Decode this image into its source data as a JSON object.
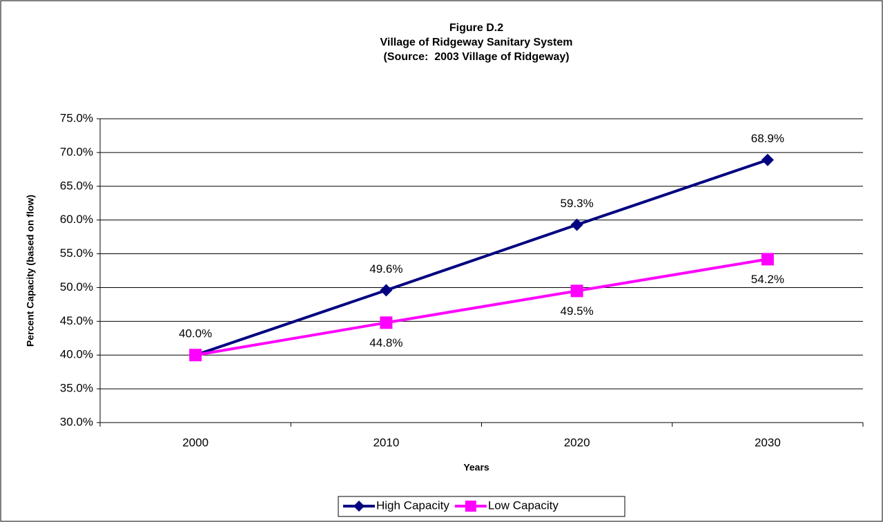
{
  "chart_data": {
    "type": "line",
    "title": "Figure D.2",
    "subtitle": [
      "Village of Ridgeway Sanitary System",
      "(Source:  2003 Village of Ridgeway)"
    ],
    "xlabel": "Years",
    "ylabel": "Percent Capacity (based on flow)",
    "categories": [
      "2000",
      "2010",
      "2020",
      "2030"
    ],
    "series": [
      {
        "name": "High Capacity",
        "color": "#000080",
        "marker": "diamond",
        "values": [
          40.0,
          49.6,
          59.3,
          68.9
        ],
        "value_labels": [
          "40.0%",
          "49.6%",
          "59.3%",
          "68.9%"
        ]
      },
      {
        "name": "Low Capacity",
        "color": "#ff00ff",
        "marker": "square",
        "values": [
          40.0,
          44.8,
          49.5,
          54.2
        ],
        "value_labels": [
          null,
          "44.8%",
          "49.5%",
          "54.2%"
        ]
      }
    ],
    "ylim": [
      30,
      75
    ],
    "yticks": [
      {
        "value": 30,
        "label": "30.0%"
      },
      {
        "value": 35,
        "label": "35.0%"
      },
      {
        "value": 40,
        "label": "40.0%"
      },
      {
        "value": 45,
        "label": "45.0%"
      },
      {
        "value": 50,
        "label": "50.0%"
      },
      {
        "value": 55,
        "label": "55.0%"
      },
      {
        "value": 60,
        "label": "60.0%"
      },
      {
        "value": 65,
        "label": "65.0%"
      },
      {
        "value": 70,
        "label": "70.0%"
      },
      {
        "value": 75,
        "label": "75.0%"
      }
    ],
    "grid": true,
    "legend": "bottom"
  }
}
